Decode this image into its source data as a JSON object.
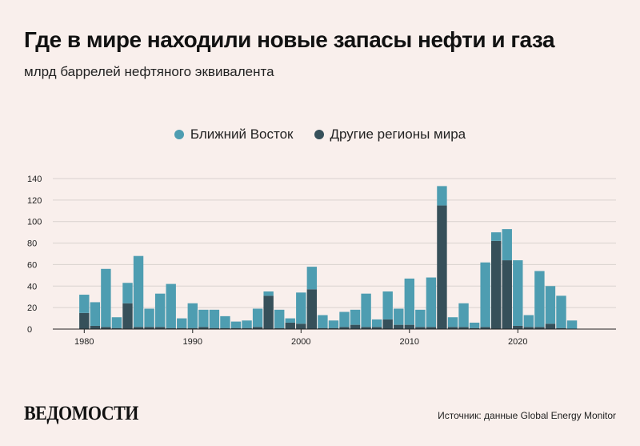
{
  "header": {
    "title": "Где в мире находили новые запасы нефти и газа",
    "subtitle": "млрд баррелей нефтяного эквивалента"
  },
  "legend": [
    {
      "label": "Ближний Восток",
      "color": "#4e9db1"
    },
    {
      "label": "Другие регионы мира",
      "color": "#36505a"
    }
  ],
  "footer": {
    "logo": "ВЕДОМОСТИ",
    "source": "Источник: данные Global Energy Monitor"
  },
  "chart_data": {
    "type": "bar",
    "stacked": true,
    "title": "Где в мире находили новые запасы нефти и газа",
    "ylabel": "млрд баррелей нефтяного эквивалента",
    "ylim": [
      0,
      140
    ],
    "yticks": [
      0,
      20,
      40,
      60,
      80,
      100,
      120,
      140
    ],
    "xticks": [
      1980,
      1990,
      2000,
      2010,
      2020
    ],
    "grid": true,
    "legend_position": "top-center",
    "x": [
      1980,
      1981,
      1982,
      1983,
      1984,
      1985,
      1986,
      1987,
      1988,
      1989,
      1990,
      1991,
      1992,
      1993,
      1994,
      1995,
      1996,
      1997,
      1998,
      1999,
      2000,
      2001,
      2002,
      2003,
      2004,
      2005,
      2006,
      2007,
      2008,
      2009,
      2010,
      2011,
      2012,
      2013,
      2014,
      2015,
      2016,
      2017,
      2018,
      2019,
      2020,
      2021,
      2022,
      2023,
      2024,
      2025
    ],
    "series": [
      {
        "name": "Другие регионы мира",
        "color": "#36505a",
        "values": [
          15,
          3,
          2,
          1,
          24,
          2,
          2,
          2,
          1,
          1,
          1,
          2,
          1,
          1,
          1,
          1,
          2,
          31,
          1,
          6,
          5,
          37,
          1,
          1,
          2,
          4,
          2,
          2,
          9,
          4,
          4,
          2,
          2,
          115,
          2,
          2,
          1,
          2,
          82,
          64,
          3,
          2,
          2,
          5,
          1,
          0
        ]
      },
      {
        "name": "Ближний Восток",
        "color": "#4e9db1",
        "values": [
          17,
          22,
          54,
          10,
          19,
          66,
          17,
          31,
          41,
          9,
          23,
          16,
          17,
          11,
          6,
          7,
          17,
          4,
          17,
          4,
          29,
          21,
          12,
          7,
          14,
          14,
          31,
          7,
          26,
          15,
          43,
          16,
          46,
          18,
          9,
          22,
          5,
          60,
          8,
          29,
          61,
          11,
          52,
          35,
          30,
          8
        ]
      }
    ]
  }
}
